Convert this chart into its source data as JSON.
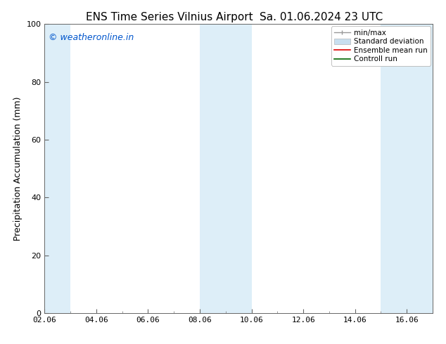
{
  "title1": "ENS Time Series Vilnius Airport",
  "title2": "Sa. 01.06.2024 23 UTC",
  "ylabel": "Precipitation Accumulation (mm)",
  "ylim": [
    0,
    100
  ],
  "yticks": [
    0,
    20,
    40,
    60,
    80,
    100
  ],
  "xlim_start": 0,
  "xlim_end": 15,
  "xtick_labels": [
    "02.06",
    "04.06",
    "06.06",
    "08.06",
    "10.06",
    "12.06",
    "14.06",
    "16.06"
  ],
  "xtick_positions": [
    0,
    2,
    4,
    6,
    8,
    10,
    12,
    14
  ],
  "watermark": "© weatheronline.in",
  "watermark_color": "#0055cc",
  "background_color": "#ffffff",
  "plot_bg_color": "#ffffff",
  "shaded_color": "#ddeef8",
  "shaded_bands": [
    {
      "xmin": -0.1,
      "xmax": 1.0
    },
    {
      "xmin": 6.0,
      "xmax": 8.0
    },
    {
      "xmin": 13.0,
      "xmax": 15.1
    }
  ],
  "legend_labels": [
    "min/max",
    "Standard deviation",
    "Ensemble mean run",
    "Controll run"
  ],
  "legend_minmax_color": "#999999",
  "legend_std_color": "#c8dff0",
  "legend_ens_color": "#dd0000",
  "legend_ctrl_color": "#006600",
  "title_fontsize": 11,
  "axis_fontsize": 9,
  "tick_fontsize": 8,
  "watermark_fontsize": 9,
  "legend_fontsize": 7.5
}
